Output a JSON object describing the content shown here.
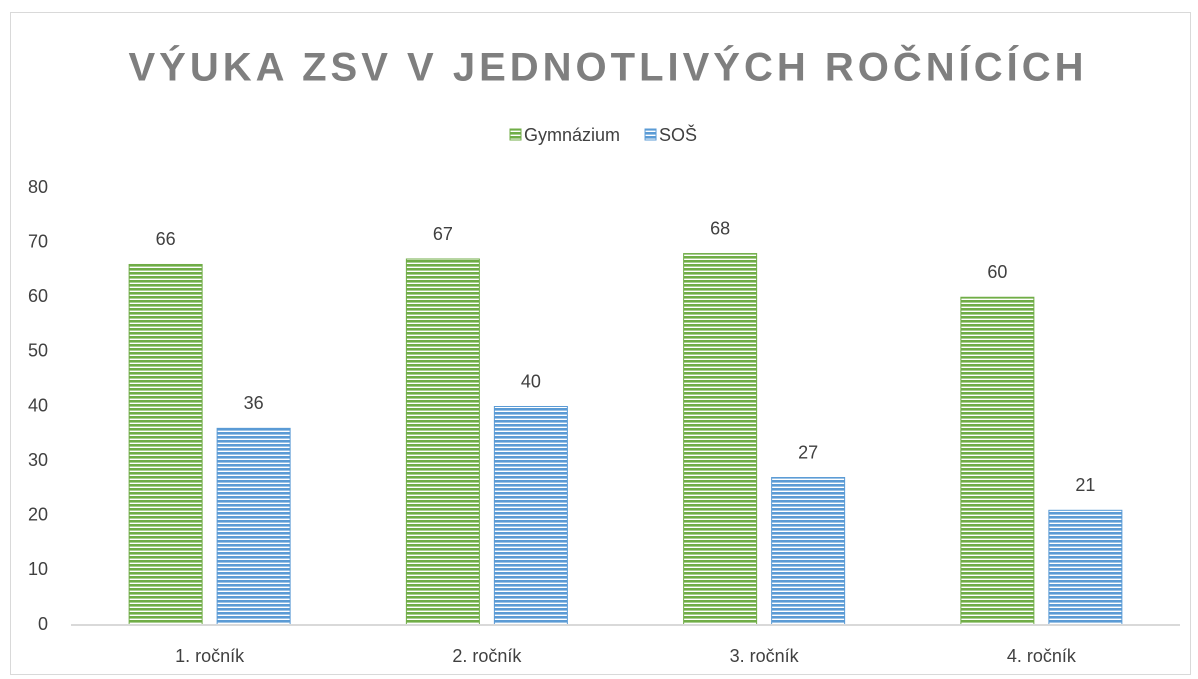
{
  "chart_data": {
    "type": "bar",
    "title": "VÝUKA ZSV V JEDNOTLIVÝCH ROČNÍCÍCH",
    "categories": [
      "1. ročník",
      "2. ročník",
      "3. ročník",
      "4. ročník"
    ],
    "series": [
      {
        "name": "Gymnázium",
        "color": "#70ad47",
        "values": [
          66,
          67,
          68,
          60
        ]
      },
      {
        "name": "SOŠ",
        "color": "#5b9bd5",
        "values": [
          36,
          40,
          27,
          21
        ]
      }
    ],
    "ylim": [
      0,
      80
    ],
    "yticks": [
      0,
      10,
      20,
      30,
      40,
      50,
      60,
      70,
      80
    ],
    "grid": false,
    "legend": "top"
  }
}
